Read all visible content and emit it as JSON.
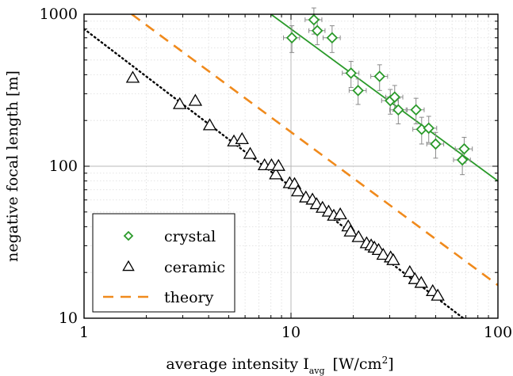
{
  "chart_data": {
    "type": "scatter",
    "x_scale": "log",
    "y_scale": "log",
    "xlim": [
      1,
      100
    ],
    "ylim": [
      10,
      1000
    ],
    "xlabel": {
      "main": "average intensity I",
      "sub": "avg",
      "unit": "[W/cm",
      "sup": "2",
      "unit_close": "]"
    },
    "ylabel": "negative focal length [m]",
    "x_ticks": [
      {
        "value": 1,
        "label": "1"
      },
      {
        "value": 10,
        "label": "10"
      },
      {
        "value": 100,
        "label": "100"
      }
    ],
    "y_ticks": [
      {
        "value": 10,
        "label": "10"
      },
      {
        "value": 100,
        "label": "100"
      },
      {
        "value": 1000,
        "label": "1000"
      }
    ],
    "grid": true,
    "legend_placement": "bottom-left",
    "series": [
      {
        "name": "crystal",
        "marker": "diamond",
        "color": "#2a9a2a",
        "points": [
          {
            "x": 10.1,
            "y": 700,
            "xerr": 0.9,
            "yerr": 140
          },
          {
            "x": 12.9,
            "y": 920,
            "xerr": 1.2,
            "yerr": 180
          },
          {
            "x": 13.4,
            "y": 780,
            "xerr": 1.2,
            "yerr": 150
          },
          {
            "x": 15.8,
            "y": 700,
            "xerr": 1.5,
            "yerr": 140
          },
          {
            "x": 19.5,
            "y": 410,
            "xerr": 1.8,
            "yerr": 80
          },
          {
            "x": 21.1,
            "y": 315,
            "xerr": 2.0,
            "yerr": 60
          },
          {
            "x": 26.8,
            "y": 390,
            "xerr": 2.5,
            "yerr": 75
          },
          {
            "x": 30.2,
            "y": 270,
            "xerr": 2.8,
            "yerr": 50
          },
          {
            "x": 31.7,
            "y": 285,
            "xerr": 3.0,
            "yerr": 55
          },
          {
            "x": 33.0,
            "y": 235,
            "xerr": 3.0,
            "yerr": 45
          },
          {
            "x": 40.2,
            "y": 235,
            "xerr": 3.8,
            "yerr": 45
          },
          {
            "x": 42.8,
            "y": 175,
            "xerr": 4.0,
            "yerr": 35
          },
          {
            "x": 46.3,
            "y": 178,
            "xerr": 4.3,
            "yerr": 35
          },
          {
            "x": 50.0,
            "y": 140,
            "xerr": 4.7,
            "yerr": 27
          },
          {
            "x": 68.7,
            "y": 130,
            "xerr": 6.5,
            "yerr": 25
          },
          {
            "x": 67.3,
            "y": 110,
            "xerr": 6.3,
            "yerr": 22
          }
        ],
        "fit_line": [
          [
            8.0,
            1000
          ],
          [
            100,
            80
          ]
        ]
      },
      {
        "name": "ceramic",
        "marker": "triangle",
        "color": "#000000",
        "points": [
          {
            "x": 1.72,
            "y": 380
          },
          {
            "x": 2.9,
            "y": 255
          },
          {
            "x": 3.45,
            "y": 268
          },
          {
            "x": 4.05,
            "y": 185
          },
          {
            "x": 5.3,
            "y": 145
          },
          {
            "x": 5.8,
            "y": 150
          },
          {
            "x": 6.35,
            "y": 120
          },
          {
            "x": 7.45,
            "y": 101
          },
          {
            "x": 8.05,
            "y": 101
          },
          {
            "x": 8.45,
            "y": 88
          },
          {
            "x": 8.7,
            "y": 100
          },
          {
            "x": 9.85,
            "y": 77
          },
          {
            "x": 10.4,
            "y": 76
          },
          {
            "x": 10.8,
            "y": 68
          },
          {
            "x": 11.8,
            "y": 62
          },
          {
            "x": 12.7,
            "y": 60
          },
          {
            "x": 13.3,
            "y": 56
          },
          {
            "x": 14.2,
            "y": 53
          },
          {
            "x": 15.2,
            "y": 50
          },
          {
            "x": 16.1,
            "y": 47
          },
          {
            "x": 17.3,
            "y": 48
          },
          {
            "x": 18.9,
            "y": 40
          },
          {
            "x": 19.4,
            "y": 37
          },
          {
            "x": 21.2,
            "y": 34
          },
          {
            "x": 23.2,
            "y": 31
          },
          {
            "x": 24.4,
            "y": 30
          },
          {
            "x": 25.3,
            "y": 29
          },
          {
            "x": 26.5,
            "y": 28
          },
          {
            "x": 27.9,
            "y": 26
          },
          {
            "x": 30.3,
            "y": 25
          },
          {
            "x": 31.2,
            "y": 24
          },
          {
            "x": 37.5,
            "y": 20
          },
          {
            "x": 39.7,
            "y": 18
          },
          {
            "x": 42.6,
            "y": 17
          },
          {
            "x": 48.4,
            "y": 15
          },
          {
            "x": 51.2,
            "y": 14
          }
        ],
        "fit_line": [
          [
            1,
            800
          ],
          [
            68,
            10
          ]
        ]
      },
      {
        "name": "theory",
        "marker": "none",
        "color": "#f08a1c",
        "line": [
          [
            1.7,
            1000
          ],
          [
            100,
            16.5
          ]
        ]
      }
    ]
  }
}
